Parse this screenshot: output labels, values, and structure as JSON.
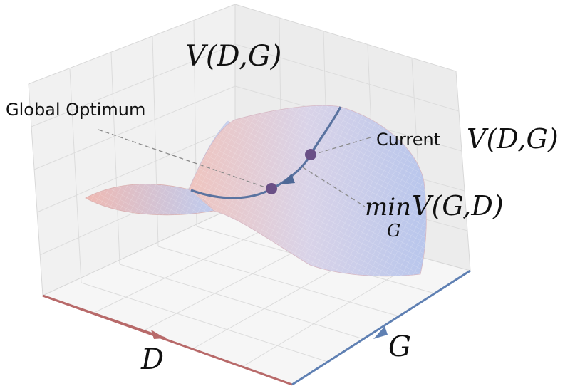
{
  "labels": {
    "global_optimum": "Global Optimum",
    "top_value": "V(D,G)",
    "current": "Current",
    "current_value": "V(D,G)",
    "min_word": "min",
    "min_sub": "G",
    "min_value": "V(G,D)",
    "axis_d": "D",
    "axis_g": "G"
  },
  "colors": {
    "axis_d": "#b86a6a",
    "axis_g": "#5f80b3",
    "path": "#5a73a0",
    "point": "#6a4f86",
    "surface_warm": "#e9a8a0",
    "surface_cool": "#a9bde8",
    "leader": "#888888"
  }
}
